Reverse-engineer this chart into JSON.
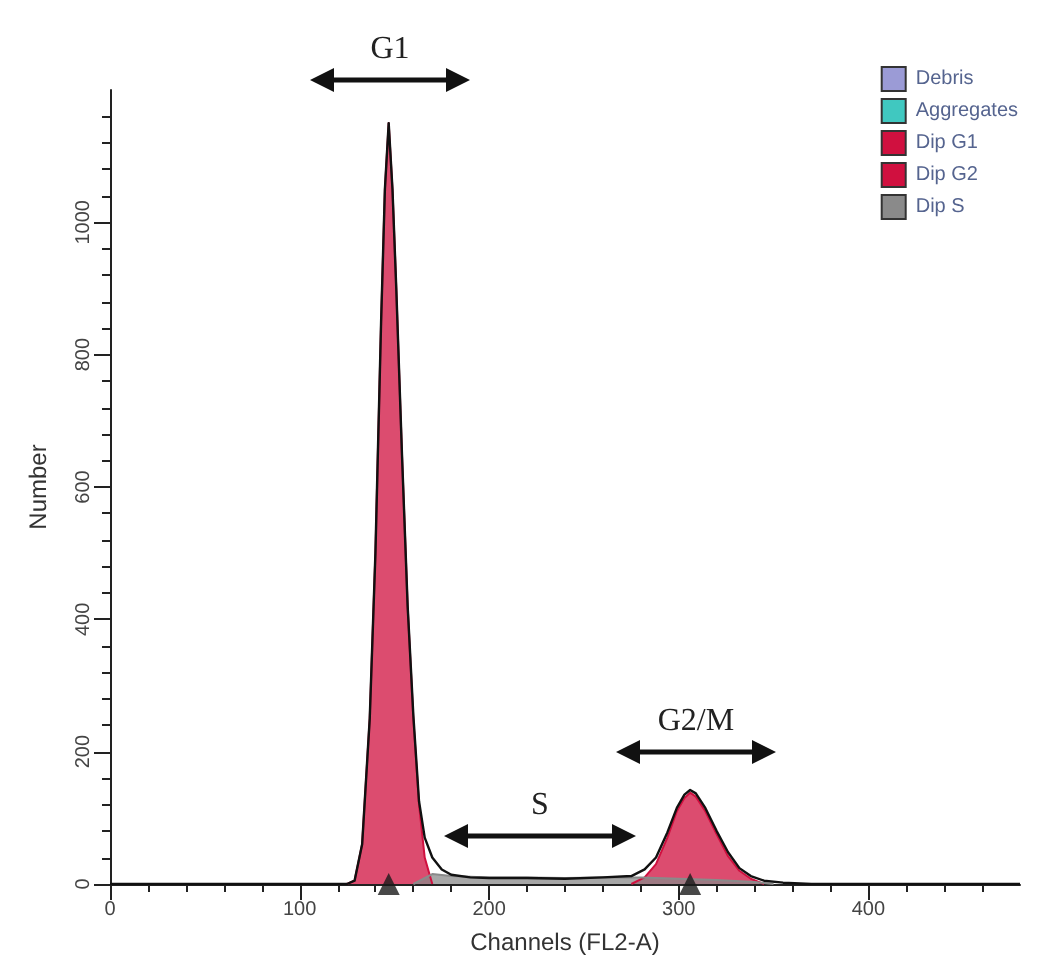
{
  "chart_data": {
    "type": "area",
    "xlabel": "Channels (FL2-A)",
    "ylabel": "Number",
    "xlim": [
      0,
      480
    ],
    "xticks": [
      0,
      100,
      200,
      300,
      400
    ],
    "ylim": [
      0,
      1200
    ],
    "yticks": [
      0,
      200,
      400,
      600,
      800,
      1000
    ],
    "grid": false,
    "legend": "top right",
    "marker": "none",
    "series": [
      {
        "name": "Debris",
        "color": "#9b9bd6"
      },
      {
        "name": "Aggregates",
        "color": "#40c8c0"
      },
      {
        "name": "Dip G1",
        "color": "#d0103f",
        "x": [
          125,
          129,
          133,
          137,
          140,
          143,
          145,
          147,
          149,
          151,
          154,
          157,
          160,
          163,
          166,
          170
        ],
        "values": [
          0,
          5,
          60,
          250,
          500,
          850,
          1050,
          1150,
          1050,
          900,
          650,
          420,
          250,
          120,
          40,
          0
        ]
      },
      {
        "name": "Dip G2",
        "color": "#d0103f",
        "x": [
          275,
          282,
          288,
          294,
          299,
          303,
          306,
          309,
          314,
          320,
          326,
          332,
          338,
          345
        ],
        "values": [
          0,
          10,
          30,
          70,
          110,
          130,
          138,
          132,
          110,
          75,
          42,
          20,
          8,
          0
        ]
      },
      {
        "name": "Dip S",
        "color": "#8a8a8a",
        "x": [
          160,
          170,
          180,
          200,
          220,
          240,
          260,
          280,
          300,
          320,
          340,
          350
        ],
        "values": [
          0,
          15,
          12,
          10,
          10,
          9,
          10,
          10,
          8,
          6,
          3,
          0
        ]
      },
      {
        "type": "line",
        "color": "#111111",
        "x": [
          0,
          60,
          120,
          125,
          129,
          133,
          137,
          140,
          143,
          145,
          147,
          149,
          151,
          154,
          157,
          160,
          163,
          166,
          170,
          175,
          180,
          190,
          200,
          220,
          240,
          260,
          275,
          282,
          288,
          294,
          299,
          303,
          306,
          309,
          314,
          320,
          326,
          332,
          338,
          345,
          355,
          370,
          480
        ],
        "values": [
          0,
          0,
          0,
          0,
          5,
          60,
          250,
          500,
          850,
          1050,
          1150,
          1050,
          900,
          650,
          420,
          255,
          125,
          70,
          40,
          22,
          14,
          10,
          9,
          9,
          8,
          10,
          12,
          22,
          40,
          78,
          115,
          135,
          142,
          137,
          115,
          80,
          48,
          24,
          12,
          5,
          2,
          0,
          0
        ]
      },
      {
        "type": "scatter",
        "marker": "triangle",
        "color": "#1a1a1a",
        "x": [
          147,
          306
        ],
        "values": [
          0,
          0
        ]
      }
    ],
    "annotations": [
      "G1",
      "S",
      "G2/M"
    ]
  }
}
